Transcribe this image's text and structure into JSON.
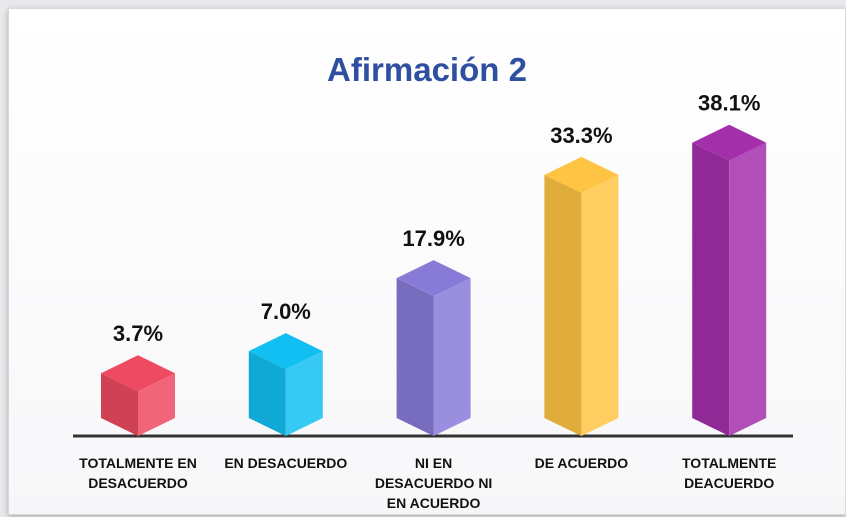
{
  "chart_data": {
    "type": "bar3d",
    "title": "Afirmación 2",
    "categories": [
      "TOTALMENTE EN DESACUERDO",
      "EN DESACUERDO",
      "NI EN DESACUERDO NI EN ACUERDO",
      "DE ACUERDO",
      "TOTALMENTE DEACUERDO"
    ],
    "values": [
      3.7,
      7.0,
      17.9,
      33.3,
      38.1
    ],
    "value_labels": [
      "3.7%",
      "7.0%",
      "17.9%",
      "33.3%",
      "38.1%"
    ],
    "colors": [
      "#ee4a62",
      "#12bff2",
      "#887bd8",
      "#ffc444",
      "#a32fab"
    ]
  }
}
